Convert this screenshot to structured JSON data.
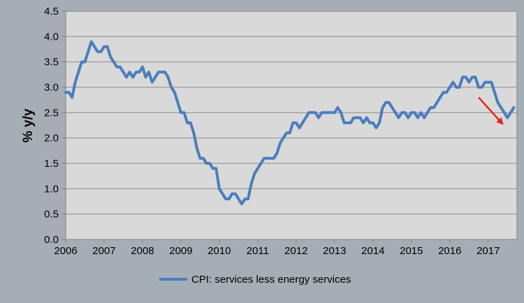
{
  "chart_data": {
    "type": "line",
    "title": "",
    "xlabel": "",
    "ylabel": "% y/y",
    "ylim": [
      0,
      4.5
    ],
    "xlim": [
      2006,
      2017.75
    ],
    "grid": true,
    "legend_position": "bottom",
    "yticks": [
      "0.0",
      "0.5",
      "1.0",
      "1.5",
      "2.0",
      "2.5",
      "3.0",
      "3.5",
      "4.0",
      "4.5"
    ],
    "xticks": [
      "2006",
      "2007",
      "2008",
      "2009",
      "2010",
      "2011",
      "2012",
      "2013",
      "2014",
      "2015",
      "2016",
      "2017"
    ],
    "series": [
      {
        "name": "CPI: services less energy services",
        "color": "#4a7ebb",
        "start_year": 2006,
        "frequency": "monthly",
        "values": [
          2.9,
          2.9,
          2.8,
          3.1,
          3.3,
          3.5,
          3.5,
          3.7,
          3.9,
          3.8,
          3.7,
          3.7,
          3.8,
          3.8,
          3.6,
          3.5,
          3.4,
          3.4,
          3.3,
          3.2,
          3.3,
          3.2,
          3.3,
          3.3,
          3.4,
          3.2,
          3.3,
          3.1,
          3.2,
          3.3,
          3.3,
          3.3,
          3.2,
          3.0,
          2.9,
          2.7,
          2.5,
          2.5,
          2.3,
          2.3,
          2.1,
          1.8,
          1.6,
          1.6,
          1.5,
          1.5,
          1.4,
          1.4,
          1.0,
          0.9,
          0.8,
          0.8,
          0.9,
          0.9,
          0.8,
          0.7,
          0.8,
          0.8,
          1.1,
          1.3,
          1.4,
          1.5,
          1.6,
          1.6,
          1.6,
          1.6,
          1.7,
          1.9,
          2.0,
          2.1,
          2.1,
          2.3,
          2.3,
          2.2,
          2.3,
          2.4,
          2.5,
          2.5,
          2.5,
          2.4,
          2.5,
          2.5,
          2.5,
          2.5,
          2.5,
          2.6,
          2.5,
          2.3,
          2.3,
          2.3,
          2.4,
          2.4,
          2.4,
          2.3,
          2.4,
          2.3,
          2.3,
          2.2,
          2.3,
          2.6,
          2.7,
          2.7,
          2.6,
          2.5,
          2.4,
          2.5,
          2.5,
          2.4,
          2.5,
          2.5,
          2.4,
          2.5,
          2.4,
          2.5,
          2.6,
          2.6,
          2.7,
          2.8,
          2.9,
          2.9,
          3.0,
          3.1,
          3.0,
          3.0,
          3.2,
          3.2,
          3.1,
          3.2,
          3.2,
          3.0,
          3.0,
          3.1,
          3.1,
          3.1,
          2.9,
          2.7,
          2.6,
          2.5,
          2.4,
          2.5,
          2.6
        ]
      }
    ],
    "annotation_arrow": {
      "color": "#e8201c",
      "from": [
        2016.75,
        2.8
      ],
      "to": [
        2017.35,
        2.3
      ]
    }
  }
}
